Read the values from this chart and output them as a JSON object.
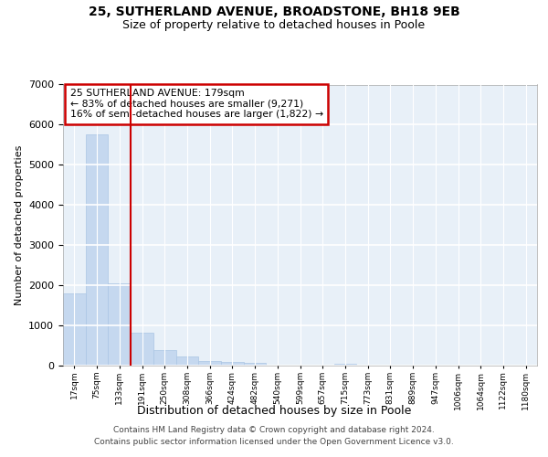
{
  "title1": "25, SUTHERLAND AVENUE, BROADSTONE, BH18 9EB",
  "title2": "Size of property relative to detached houses in Poole",
  "xlabel": "Distribution of detached houses by size in Poole",
  "ylabel": "Number of detached properties",
  "bar_color": "#c5d8ef",
  "bar_edge_color": "#aac5e4",
  "background_color": "#e8f0f8",
  "grid_color": "#ffffff",
  "categories": [
    "17sqm",
    "75sqm",
    "133sqm",
    "191sqm",
    "250sqm",
    "308sqm",
    "366sqm",
    "424sqm",
    "482sqm",
    "540sqm",
    "599sqm",
    "657sqm",
    "715sqm",
    "773sqm",
    "831sqm",
    "889sqm",
    "947sqm",
    "1006sqm",
    "1064sqm",
    "1122sqm",
    "1180sqm"
  ],
  "values": [
    1800,
    5750,
    2050,
    830,
    380,
    230,
    110,
    90,
    65,
    0,
    0,
    0,
    50,
    0,
    0,
    0,
    0,
    0,
    0,
    0,
    0
  ],
  "ylim": [
    0,
    7000
  ],
  "yticks": [
    0,
    1000,
    2000,
    3000,
    4000,
    5000,
    6000,
    7000
  ],
  "vline_position": 3.0,
  "annotation_line1": "25 SUTHERLAND AVENUE: 179sqm",
  "annotation_line2": "← 83% of detached houses are smaller (9,271)",
  "annotation_line3": "16% of semi-detached houses are larger (1,822) →",
  "annotation_box_bg": "#ffffff",
  "annotation_box_edge": "#cc0000",
  "vline_color": "#cc0000",
  "footer_line1": "Contains HM Land Registry data © Crown copyright and database right 2024.",
  "footer_line2": "Contains public sector information licensed under the Open Government Licence v3.0."
}
